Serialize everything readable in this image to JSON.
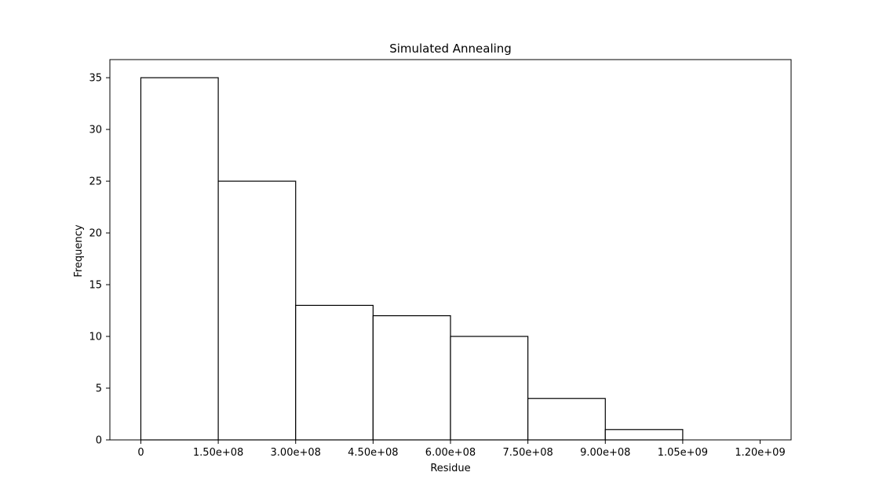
{
  "chart_data": {
    "type": "bar",
    "title": "Simulated Annealing",
    "xlabel": "Residue",
    "ylabel": "Frequency",
    "histogram": true,
    "bin_edges": [
      0,
      150000000,
      300000000,
      450000000,
      600000000,
      750000000,
      900000000,
      1050000000,
      1200000000
    ],
    "values": [
      35,
      25,
      13,
      12,
      10,
      4,
      1,
      0
    ],
    "xlim": [
      -60000000,
      1260000000
    ],
    "ylim": [
      0,
      36.75
    ],
    "x_ticks": [
      0,
      150000000,
      300000000,
      450000000,
      600000000,
      750000000,
      900000000,
      1050000000,
      1200000000
    ],
    "x_tick_labels": [
      "0",
      "1.50e+08",
      "3.00e+08",
      "4.50e+08",
      "6.00e+08",
      "7.50e+08",
      "9.00e+08",
      "1.05e+09",
      "1.20e+09"
    ],
    "y_ticks": [
      0,
      5,
      10,
      15,
      20,
      25,
      30,
      35
    ],
    "y_tick_labels": [
      "0",
      "5",
      "10",
      "15",
      "20",
      "25",
      "30",
      "35"
    ],
    "grid": false,
    "bar_fill": "#ffffff",
    "bar_edge": "#000000"
  }
}
